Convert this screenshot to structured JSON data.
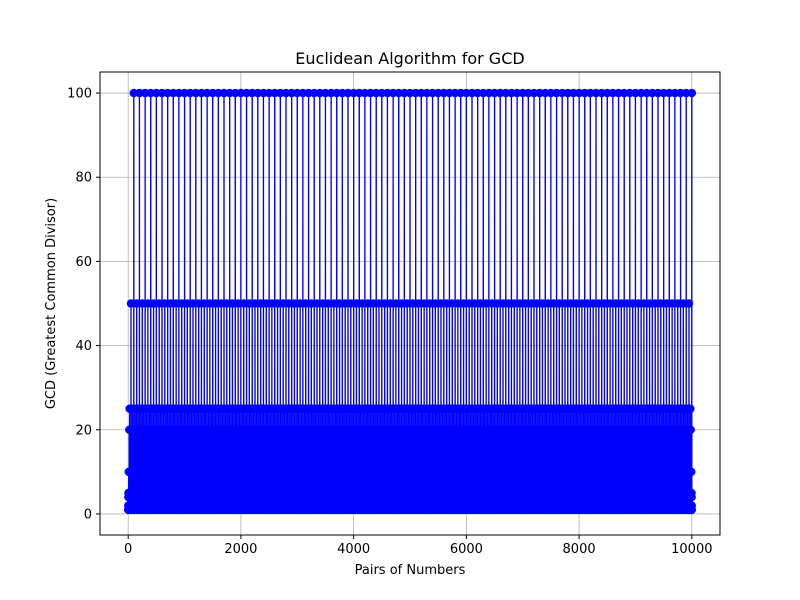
{
  "chart_data": {
    "type": "scatter",
    "title": "Euclidean Algorithm for GCD",
    "xlabel": "Pairs of Numbers",
    "ylabel": "GCD (Greatest Common Divisor)",
    "xlim": [
      -500,
      10500
    ],
    "ylim": [
      -5,
      105
    ],
    "xticks": [
      0,
      2000,
      4000,
      6000,
      8000,
      10000
    ],
    "xtick_labels": [
      "0",
      "2000",
      "4000",
      "6000",
      "8000",
      "10000"
    ],
    "yticks": [
      0,
      20,
      40,
      60,
      80,
      100
    ],
    "ytick_labels": [
      "0",
      "20",
      "40",
      "60",
      "80",
      "100"
    ],
    "grid": true,
    "legend": "none",
    "series": [
      {
        "marker": "circle",
        "style": "stem",
        "color": "#0000ff",
        "x_range": [
          1,
          10000
        ],
        "x_step": 1,
        "y_formula": "gcd(x, 100)"
      }
    ]
  }
}
